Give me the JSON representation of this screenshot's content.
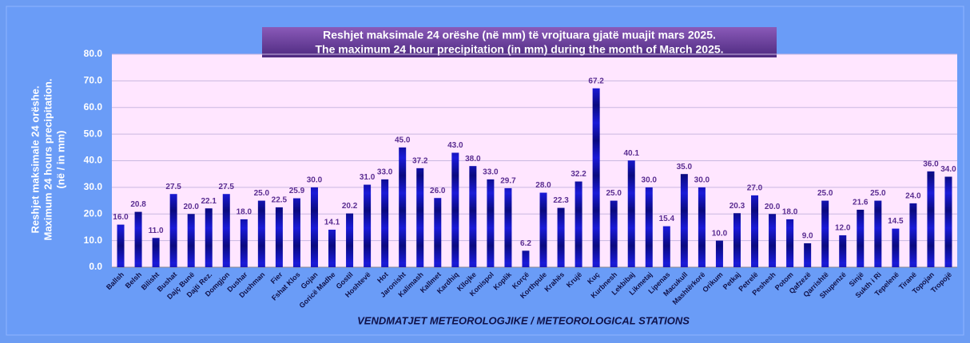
{
  "chart_data": {
    "type": "bar",
    "title": [
      "Reshjet maksimale 24 orëshe (në mm) të vrojtuara gjatë muajit  mars 2025.",
      "The maximum 24 hour precipitation (in mm) during the month of March 2025."
    ],
    "ylabel": [
      "Reshjet maksimale 24 orëshe.",
      "Maximum 24 hours precipitation.",
      "(në / in  mm)"
    ],
    "xlabel": "VENDMATJET  METEOROLOGJIKE / METEOROLOGICAL STATIONS",
    "categories": [
      "Ballsh",
      "Belsh",
      "Bilisht",
      "Bushat",
      "Dajç Bunë",
      "Dajti Rez.",
      "Domgjon",
      "Dushar",
      "Dushman",
      "Fier",
      "Fshat Klos",
      "Gojan",
      "Goricë Madhe",
      "Gostil",
      "Hoshtevë",
      "Hot",
      "Jaronisht",
      "Kalimash",
      "Kallmet",
      "Kardhiq",
      "Kllojke",
      "Konispol",
      "Koplik",
      "Korçë",
      "Korthpule",
      "Krahës",
      "Krujë",
      "Kuç",
      "Kurbnesh",
      "Lekbibaj",
      "Likmetaj",
      "Lipenas",
      "Macukull",
      "Mashtërkorë",
      "Orikum",
      "Petkaj",
      "Petrelë",
      "Peshesh",
      "Potom",
      "Qafzezë",
      "Qarrishtë",
      "Shupenzë",
      "Sinjë",
      "Sukth i Ri",
      "Tepelenë",
      "Tiranë",
      "Topojan",
      "Tropojë"
    ],
    "values": [
      16.0,
      20.8,
      11.0,
      27.5,
      20.0,
      22.1,
      27.5,
      18.0,
      25.0,
      22.5,
      25.9,
      30.0,
      14.1,
      20.2,
      31.0,
      33.0,
      45.0,
      37.2,
      26.0,
      43.0,
      38.0,
      33.0,
      29.7,
      6.2,
      28.0,
      22.3,
      32.2,
      67.2,
      25.0,
      40.1,
      30.0,
      15.4,
      35.0,
      30.0,
      10.0,
      20.3,
      27.0,
      20.0,
      18.0,
      9.0,
      25.0,
      12.0,
      21.6,
      25.0,
      14.5,
      24.0,
      36.0,
      34.0
    ],
    "value_labels": [
      "16.0",
      "20.8",
      "11.0",
      "27.5",
      "20.0",
      "22.1",
      "27.5",
      "18.0",
      "25.0",
      "22.5",
      "25.9",
      "30.0",
      "14.1",
      "20.2",
      "31.0",
      "33.0",
      "45.0",
      "37.2",
      "26.0",
      "43.0",
      "38.0",
      "33.0",
      "29.7",
      "6.2",
      "28.0",
      "22.3",
      "32.2",
      "67.2",
      "25.0",
      "40.1",
      "30.0",
      "15.4",
      "35.0",
      "30.0",
      "10.0",
      "20.3",
      "27.0",
      "20.0",
      "18.0",
      "9.0",
      "25.0",
      "12.0",
      "21.6",
      "25.0",
      "14.5",
      "24.0",
      "36.0",
      "34.0"
    ],
    "color": "#1a1ad8",
    "ylim": [
      0,
      80
    ],
    "yticks": [
      {
        "value": 0,
        "label": "0.0"
      },
      {
        "value": 10,
        "label": "10.0"
      },
      {
        "value": 20,
        "label": "20.0"
      },
      {
        "value": 30,
        "label": "30.0"
      },
      {
        "value": 40,
        "label": "40.0"
      },
      {
        "value": 50,
        "label": "50.0"
      },
      {
        "value": 60,
        "label": "60.0"
      },
      {
        "value": 70,
        "label": "70.0"
      },
      {
        "value": 80,
        "label": "80.0"
      }
    ],
    "grid": true
  }
}
